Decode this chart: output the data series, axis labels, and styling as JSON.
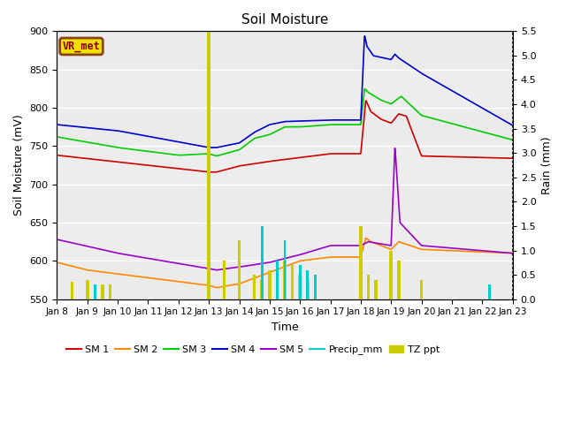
{
  "title": "Soil Moisture",
  "xlabel": "Time",
  "ylabel_left": "Soil Moisture (mV)",
  "ylabel_right": "Rain (mm)",
  "ylim_left": [
    550,
    900
  ],
  "ylim_right": [
    0.0,
    5.5
  ],
  "colors": {
    "SM1": "#cc0000",
    "SM2": "#ff8800",
    "SM3": "#00cc00",
    "SM4": "#0000cc",
    "SM5": "#9900cc",
    "Precip": "#00cccc",
    "TZppt": "#cccc00",
    "plot_bg_dark": "#e0e0e0",
    "plot_bg_light": "#f0f0f0"
  },
  "xtick_labels": [
    "Jan 8",
    "Jan 9",
    "Jan 10",
    "Jan 11",
    "Jan 12",
    "Jan 13",
    "Jan 14",
    "Jan 15",
    "Jan 16",
    "Jan 17",
    "Jan 18",
    "Jan 19",
    "Jan 20",
    "Jan 21",
    "Jan 22",
    "Jan 23"
  ],
  "vr_met_label": "VR_met"
}
